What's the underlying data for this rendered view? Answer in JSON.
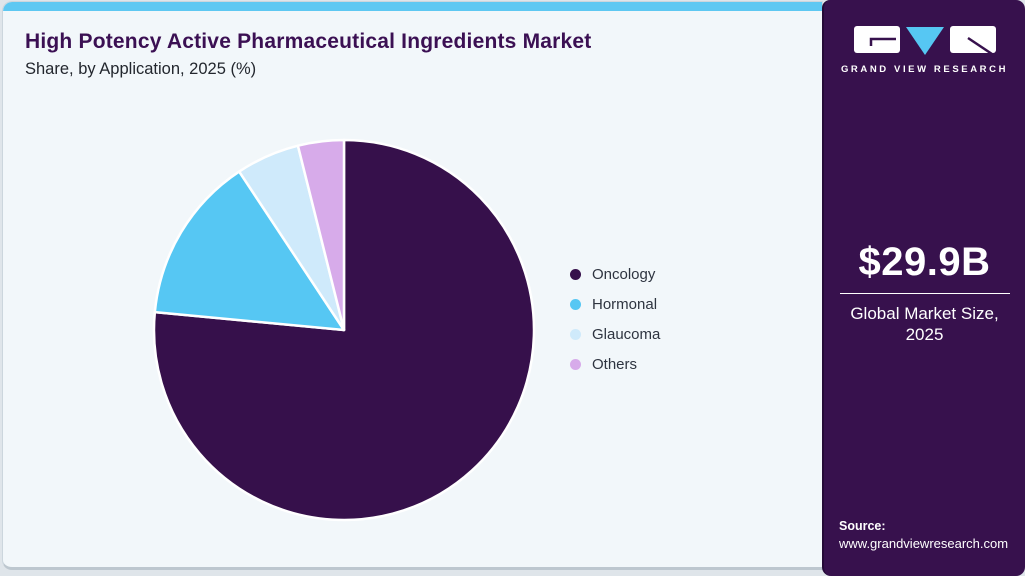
{
  "header": {
    "title": "High Potency Active Pharmaceutical Ingredients Market",
    "subtitle": "Share, by Application, 2025 (%)"
  },
  "chart_data": {
    "type": "pie",
    "title": "High Potency Active Pharmaceutical Ingredients Market Share, by Application, 2025 (%)",
    "categories": [
      "Oncology",
      "Hormonal",
      "Glaucoma",
      "Others"
    ],
    "values": [
      76.5,
      14.2,
      5.4,
      3.9
    ],
    "units": "%",
    "colors": [
      "#36104b",
      "#56c7f3",
      "#cfeafb",
      "#d7abea"
    ],
    "start_angle_deg": 0,
    "direction": "clockwise",
    "legend_position": "right",
    "slice_border_color": "#ffffff"
  },
  "sidebar": {
    "logo_text": "GRAND VIEW RESEARCH",
    "market_size_value": "$29.9B",
    "market_size_label_line1": "Global Market Size,",
    "market_size_label_line2": "2025",
    "source_label": "Source:",
    "source_url": "www.grandviewresearch.com",
    "colors": {
      "background": "#37114d",
      "accent_blue": "#56c7f3",
      "topbar_blue": "#5ec8f2"
    }
  }
}
